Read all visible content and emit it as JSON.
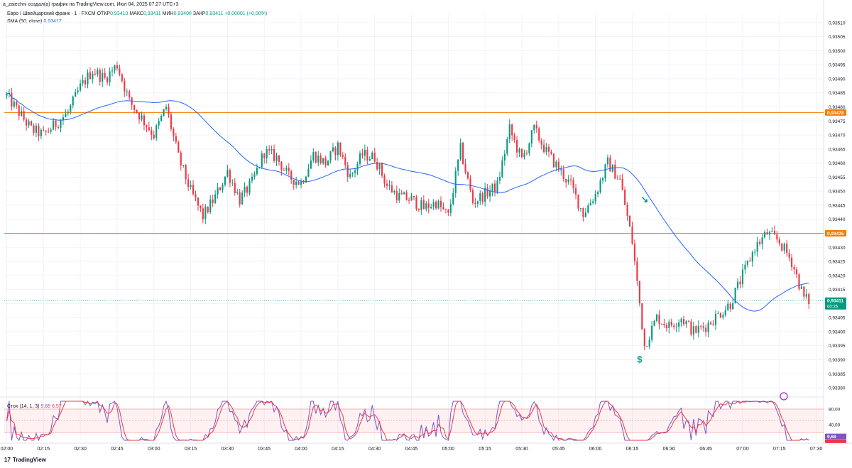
{
  "header": {
    "attribution": "a_zaiechni создал(а) график на TradingView.com, Июл 04, 2025 07:27 UTC+3",
    "symbol": "Евро / Швейцарский франк · 1 · FXCM",
    "o_label": "ОТКР",
    "o_value": "0,93410",
    "h_label": "МАКС",
    "h_value": "0,93411",
    "l_label": "МИН",
    "l_value": "0,93408",
    "c_label": "ЗАКР",
    "c_value": "0,93411",
    "change": "+0,00001 (+0,00%)",
    "sma_label": "SMA (50, close)",
    "sma_value": "0,93417"
  },
  "stoch_legend": {
    "label": "Стох (14, 1, 3)",
    "k": "9,68",
    "d": "6,57"
  },
  "brand": {
    "name": "TradingView"
  },
  "colors": {
    "up": "#089981",
    "down": "#f23645",
    "sma": "#2962ff",
    "hline": "#f57c00",
    "stoch_k": "#7e57c2",
    "stoch_d": "#f23645"
  },
  "chart_data": {
    "type": "candlestick",
    "y_ticks": [
      "0,93510",
      "0,93505",
      "0,93500",
      "0,93495",
      "0,93490",
      "0,93485",
      "0,93480",
      "0,93475",
      "0,93470",
      "0,93465",
      "0,93460",
      "0,93455",
      "0,93450",
      "0,93445",
      "0,93440",
      "0,93435",
      "0,93430",
      "0,93425",
      "0,93420",
      "0,93415",
      "0,93410",
      "0,93405",
      "0,93400",
      "0,93395",
      "0,93390",
      "0,93385",
      "0,93380"
    ],
    "x_ticks": [
      "02:00",
      "02:15",
      "02:30",
      "02:45",
      "03:00",
      "03:15",
      "03:30",
      "03:45",
      "04:00",
      "04:15",
      "04:30",
      "04:45",
      "05:00",
      "05:15",
      "05:30",
      "05:45",
      "06:00",
      "06:15",
      "06:30",
      "06:45",
      "07:00",
      "07:15",
      "07:30"
    ],
    "ylim": [
      0.93379,
      0.93513
    ],
    "hlines": [
      {
        "value": 0.93478,
        "label": "0,93478"
      },
      {
        "value": 0.93435,
        "label": "0,93435"
      }
    ],
    "last_price": {
      "value": 0.93411,
      "label": "0,93411",
      "countdown": "00:26"
    },
    "sma_period": 50,
    "markers": [
      {
        "symbol": "↘",
        "time": "06:20",
        "price": 0.93446
      },
      {
        "symbol": "$",
        "time": "06:18",
        "price": 0.93389
      }
    ],
    "anchors": [
      {
        "t": "02:00",
        "p": 0.93484
      },
      {
        "t": "02:05",
        "p": 0.93478
      },
      {
        "t": "02:10",
        "p": 0.93472
      },
      {
        "t": "02:15",
        "p": 0.9347
      },
      {
        "t": "02:20",
        "p": 0.93474
      },
      {
        "t": "02:25",
        "p": 0.93478
      },
      {
        "t": "02:30",
        "p": 0.93487
      },
      {
        "t": "02:35",
        "p": 0.93493
      },
      {
        "t": "02:40",
        "p": 0.9349
      },
      {
        "t": "02:45",
        "p": 0.93495
      },
      {
        "t": "02:50",
        "p": 0.93482
      },
      {
        "t": "02:55",
        "p": 0.93476
      },
      {
        "t": "03:00",
        "p": 0.9347
      },
      {
        "t": "03:05",
        "p": 0.9348
      },
      {
        "t": "03:10",
        "p": 0.93462
      },
      {
        "t": "03:15",
        "p": 0.9345
      },
      {
        "t": "03:20",
        "p": 0.93441
      },
      {
        "t": "03:25",
        "p": 0.93448
      },
      {
        "t": "03:30",
        "p": 0.93457
      },
      {
        "t": "03:35",
        "p": 0.93447
      },
      {
        "t": "03:40",
        "p": 0.93453
      },
      {
        "t": "03:45",
        "p": 0.93464
      },
      {
        "t": "03:50",
        "p": 0.93462
      },
      {
        "t": "03:55",
        "p": 0.93455
      },
      {
        "t": "04:00",
        "p": 0.93453
      },
      {
        "t": "04:05",
        "p": 0.93463
      },
      {
        "t": "04:10",
        "p": 0.9346
      },
      {
        "t": "04:15",
        "p": 0.93466
      },
      {
        "t": "04:20",
        "p": 0.93455
      },
      {
        "t": "04:25",
        "p": 0.93463
      },
      {
        "t": "04:30",
        "p": 0.93462
      },
      {
        "t": "04:35",
        "p": 0.93452
      },
      {
        "t": "04:40",
        "p": 0.93448
      },
      {
        "t": "04:45",
        "p": 0.93447
      },
      {
        "t": "04:50",
        "p": 0.93444
      },
      {
        "t": "04:55",
        "p": 0.93446
      },
      {
        "t": "05:00",
        "p": 0.93441
      },
      {
        "t": "05:05",
        "p": 0.93465
      },
      {
        "t": "05:10",
        "p": 0.93446
      },
      {
        "t": "05:15",
        "p": 0.93449
      },
      {
        "t": "05:20",
        "p": 0.93452
      },
      {
        "t": "05:25",
        "p": 0.93472
      },
      {
        "t": "05:30",
        "p": 0.93461
      },
      {
        "t": "05:35",
        "p": 0.93472
      },
      {
        "t": "05:40",
        "p": 0.93464
      },
      {
        "t": "05:45",
        "p": 0.93458
      },
      {
        "t": "05:50",
        "p": 0.93452
      },
      {
        "t": "05:55",
        "p": 0.93442
      },
      {
        "t": "06:00",
        "p": 0.93449
      },
      {
        "t": "06:05",
        "p": 0.9346
      },
      {
        "t": "06:10",
        "p": 0.93454
      },
      {
        "t": "06:15",
        "p": 0.93432
      },
      {
        "t": "06:18",
        "p": 0.9341
      },
      {
        "t": "06:20",
        "p": 0.93395
      },
      {
        "t": "06:25",
        "p": 0.93405
      },
      {
        "t": "06:30",
        "p": 0.93402
      },
      {
        "t": "06:35",
        "p": 0.93405
      },
      {
        "t": "06:40",
        "p": 0.934
      },
      {
        "t": "06:45",
        "p": 0.93402
      },
      {
        "t": "06:50",
        "p": 0.93406
      },
      {
        "t": "06:55",
        "p": 0.9341
      },
      {
        "t": "07:00",
        "p": 0.9342
      },
      {
        "t": "07:05",
        "p": 0.9343
      },
      {
        "t": "07:10",
        "p": 0.93435
      },
      {
        "t": "07:15",
        "p": 0.93432
      },
      {
        "t": "07:20",
        "p": 0.93425
      },
      {
        "t": "07:25",
        "p": 0.93412
      },
      {
        "t": "07:27",
        "p": 0.93411
      }
    ],
    "stochastic": {
      "label": "Стох (14, 1, 3)",
      "k": 9.68,
      "d": 6.57,
      "bands": {
        "upper": 80,
        "middle": 50,
        "lower": 20
      },
      "y_ticks": [
        "80,00",
        "40,00"
      ]
    }
  }
}
